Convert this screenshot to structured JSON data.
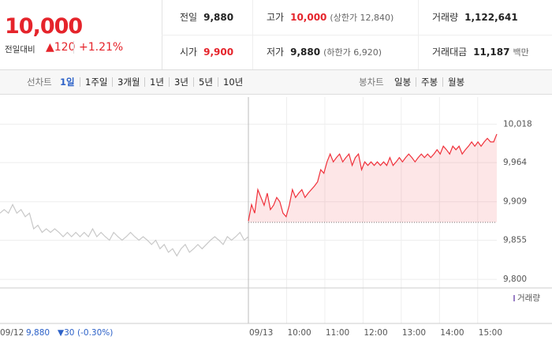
{
  "quote": {
    "price": "10,000",
    "change_label": "전일대비",
    "change": "▲120",
    "change_pct": "+1.21%"
  },
  "stats": [
    {
      "label": "전일",
      "value": "9,880",
      "color": "#222222"
    },
    {
      "label": "고가",
      "value": "10,000",
      "note": "(상한가 12,840)",
      "color": "#e5242b"
    },
    {
      "label": "거래량",
      "value": "1,122,641",
      "color": "#222222"
    },
    {
      "label": "시가",
      "value": "9,900",
      "color": "#e5242b"
    },
    {
      "label": "저가",
      "value": "9,880",
      "note": "(하한가 6,920)",
      "color": "#222222"
    },
    {
      "label": "거래대금",
      "value": "11,187",
      "note": "백만",
      "color": "#222222"
    }
  ],
  "tabs": {
    "line_label": "선차트",
    "periods": [
      "1일",
      "1주일",
      "3개월",
      "1년",
      "3년",
      "5년",
      "10년"
    ],
    "selected": 0,
    "candle_label": "봉차트",
    "candles": [
      "일봉",
      "주봉",
      "월봉"
    ]
  },
  "footer": {
    "date": "09/12",
    "price": "9,880",
    "change": "▼30",
    "pct": "(-0.30%)"
  },
  "chart_data": {
    "type": "line",
    "ylim": [
      9788,
      10056
    ],
    "yticks": [
      {
        "value": 10018,
        "label": "10,018"
      },
      {
        "value": 9964,
        "label": "9,964"
      },
      {
        "value": 9909,
        "label": "9,909"
      },
      {
        "value": 9855,
        "label": "9,855"
      },
      {
        "value": 9800,
        "label": "9,800"
      }
    ],
    "xlim": [
      2.5,
      15.5
    ],
    "xticks": [
      {
        "value": 9,
        "label": "09/13"
      },
      {
        "value": 10,
        "label": "10:00"
      },
      {
        "value": 11,
        "label": "11:00"
      },
      {
        "value": 12,
        "label": "12:00"
      },
      {
        "value": 13,
        "label": "13:00"
      },
      {
        "value": 14,
        "label": "14:00"
      },
      {
        "value": 15,
        "label": "15:00"
      }
    ],
    "baseline": 9880,
    "volume_label": "거래량",
    "series": [
      {
        "color": "#c8c8c8",
        "values": [
          9893,
          9898,
          9893,
          9905,
          9893,
          9898,
          9888,
          9893,
          9871,
          9876,
          9866,
          9871,
          9866,
          9871,
          9866,
          9860,
          9866,
          9860,
          9866,
          9860,
          9866,
          9860,
          9871,
          9860,
          9866,
          9860,
          9855,
          9866,
          9860,
          9855,
          9860,
          9866,
          9860,
          9855,
          9860,
          9855,
          9849,
          9855,
          9843,
          9849,
          9838,
          9843,
          9833,
          9843,
          9849,
          9838,
          9843,
          9849,
          9843,
          9849,
          9855,
          9860,
          9855,
          9849,
          9860,
          9855,
          9860,
          9866,
          9855,
          9860
        ]
      },
      {
        "color": "#f0303a",
        "values": [
          9882,
          9905,
          9893,
          9926,
          9915,
          9904,
          9921,
          9898,
          9904,
          9915,
          9909,
          9893,
          9888,
          9904,
          9926,
          9915,
          9921,
          9926,
          9915,
          9921,
          9926,
          9931,
          9937,
          9954,
          9949,
          9965,
          9976,
          9965,
          9971,
          9976,
          9965,
          9971,
          9976,
          9960,
          9971,
          9976,
          9954,
          9965,
          9960,
          9965,
          9960,
          9965,
          9960,
          9965,
          9960,
          9971,
          9960,
          9965,
          9971,
          9965,
          9971,
          9976,
          9971,
          9965,
          9971,
          9976,
          9971,
          9976,
          9971,
          9976,
          9982,
          9976,
          9987,
          9982,
          9976,
          9987,
          9982,
          9987,
          9976,
          9982,
          9987,
          9993,
          9987,
          9993,
          9987,
          9993,
          9998,
          9993,
          9993,
          10004
        ]
      }
    ]
  }
}
